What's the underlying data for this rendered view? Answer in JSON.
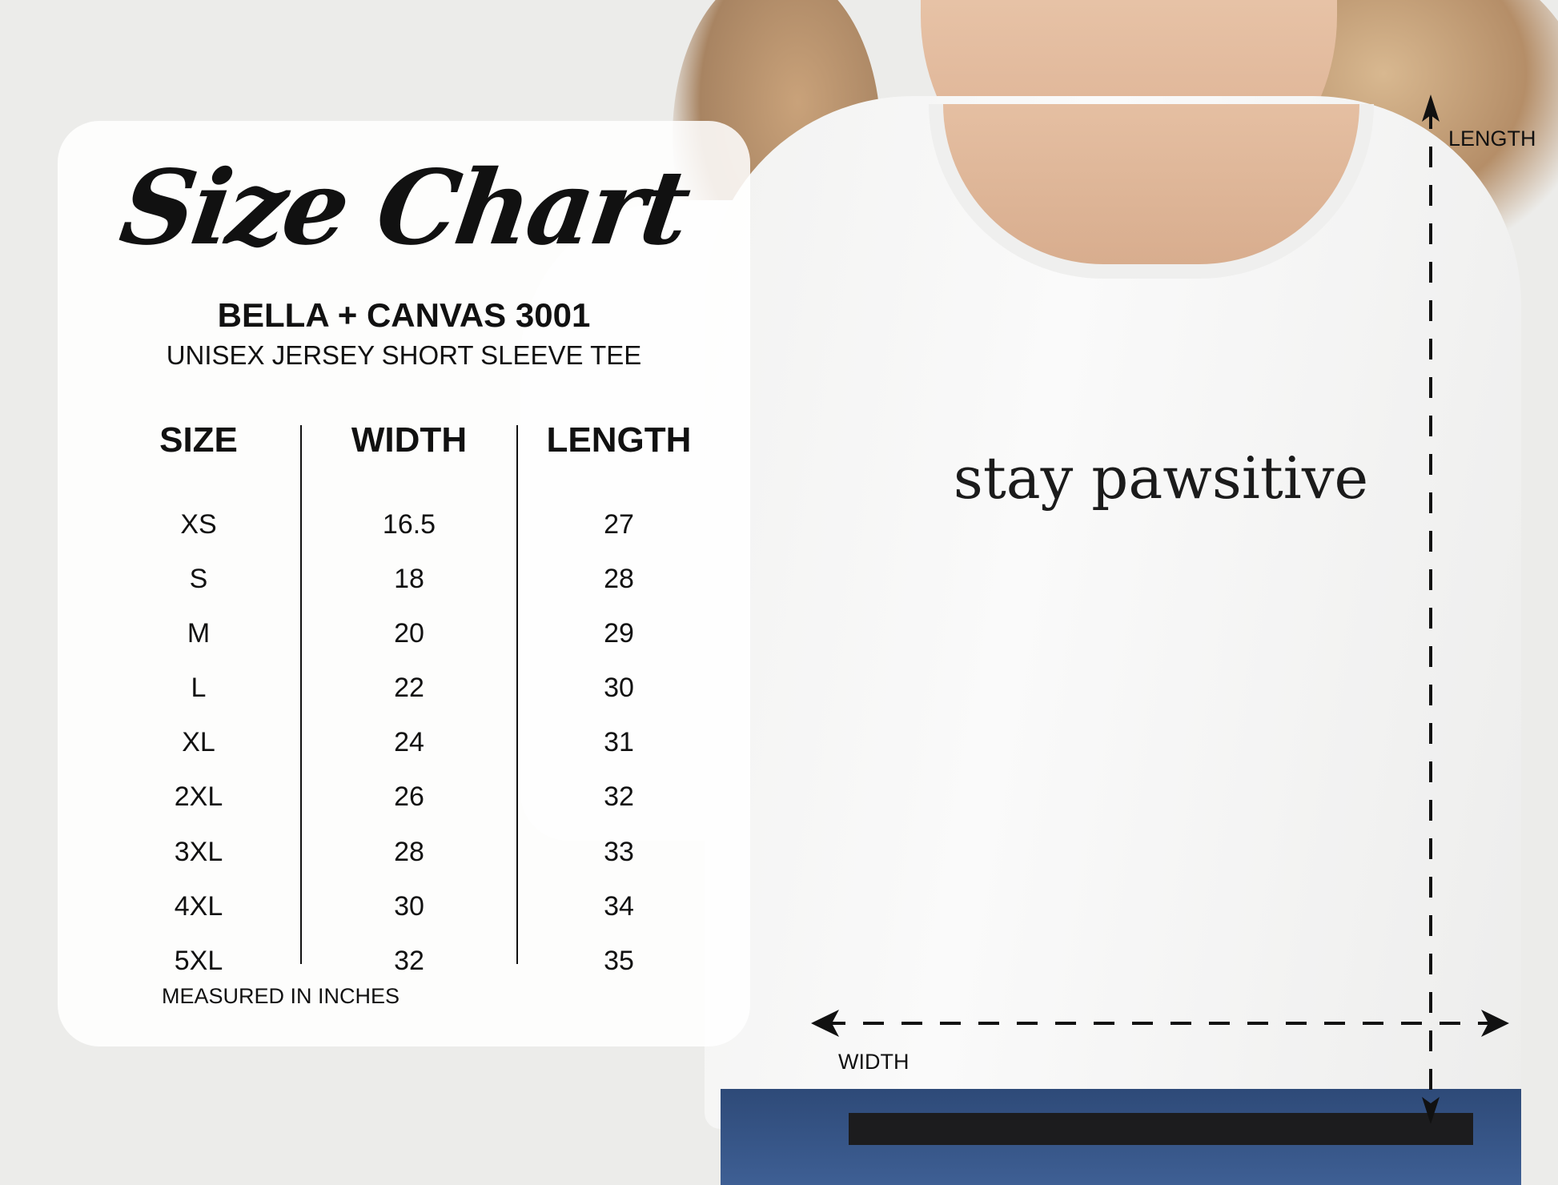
{
  "title": "Size Chart",
  "brand": "BELLA + CANVAS 3001",
  "subtitle": "UNISEX JERSEY SHORT SLEEVE TEE",
  "columns": [
    "SIZE",
    "WIDTH",
    "LENGTH"
  ],
  "sizes": [
    "XS",
    "S",
    "M",
    "L",
    "XL",
    "2XL",
    "3XL",
    "4XL",
    "5XL"
  ],
  "widths": [
    "16.5",
    "18",
    "20",
    "22",
    "24",
    "26",
    "28",
    "30",
    "32"
  ],
  "lengths": [
    "27",
    "28",
    "29",
    "30",
    "31",
    "32",
    "33",
    "34",
    "35"
  ],
  "note": "MEASURED IN INCHES",
  "shirt_print": "stay pawsitive",
  "length_label": "LENGTH",
  "width_label": "WIDTH"
}
